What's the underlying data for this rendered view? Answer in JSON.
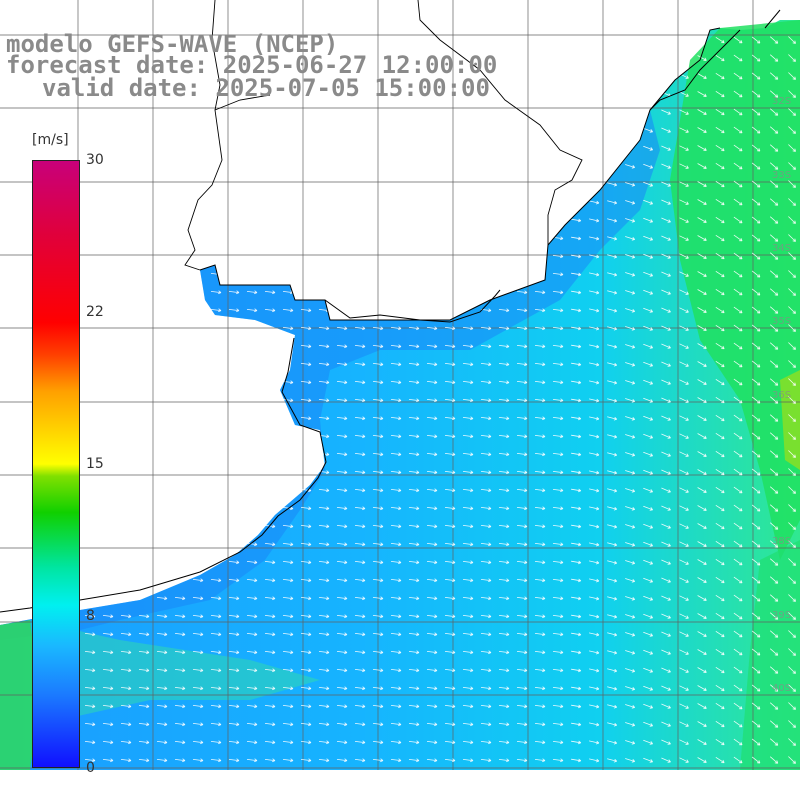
{
  "titles": {
    "model": "modelo GEFS-WAVE (NCEP)",
    "forecast": "forecast date: 2025-06-27 12:00:00",
    "valid": "valid date: 2025-07-05 15:00:00"
  },
  "colorbar": {
    "unit": "[m/s]",
    "range": [
      0,
      30
    ],
    "ticks": [
      "30",
      "22",
      "15",
      "8",
      "0"
    ],
    "colors": [
      "#1010ff",
      "#1ab8ff",
      "#00f0f0",
      "#10d000",
      "#ffff00",
      "#ff0000",
      "#c8007a"
    ]
  },
  "map": {
    "land_color": "#ffffff",
    "grid": true,
    "wind_arrows": true,
    "wind_direction": "mostly west-to-east, turning south-east near the eastern edge"
  }
}
